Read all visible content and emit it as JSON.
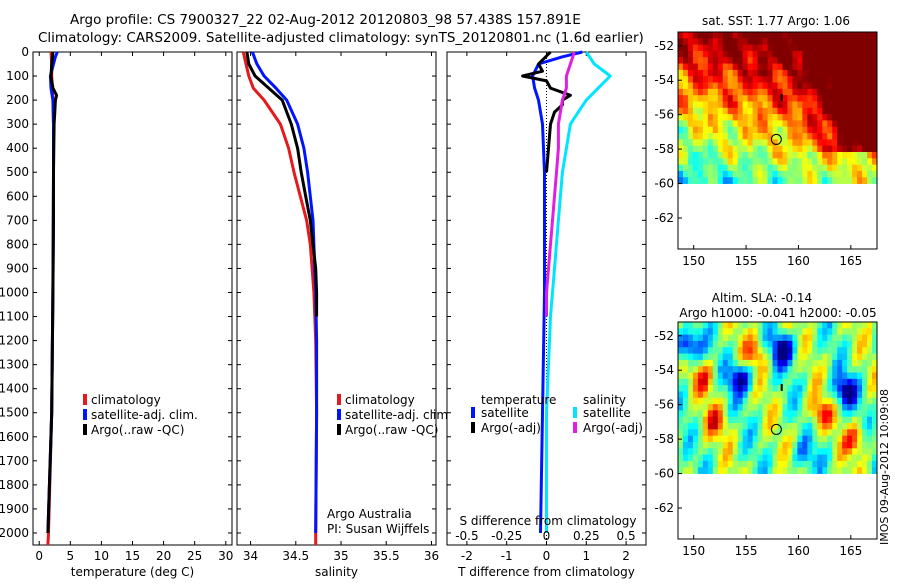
{
  "title_line1": "Argo profile: CS 7900327_22 02-Aug-2012 20120803_98 57.438S 157.891E",
  "title_line2": "Climatology: CARS2009. Satellite-adjusted climatology: synTS_20120801.nc (1.6d earlier)",
  "timestamp": "IMOS 09-Aug-2012 10:09:08",
  "colors": {
    "climatology": "#e41a1c",
    "satellite": "#0015ff",
    "argo": "#000000",
    "sat_s": "#00e5ff",
    "argo_s": "#e020e0"
  },
  "chart_data": [
    {
      "type": "line",
      "name": "temperature",
      "xlabel": "temperature (deg C)",
      "xlim": [
        -1,
        31
      ],
      "ylim": [
        0,
        2050
      ],
      "xticks": [
        0,
        5,
        10,
        15,
        20,
        25,
        30
      ],
      "xtick_labels": [
        "0",
        "5",
        "10",
        "15",
        "20",
        "25",
        "30"
      ],
      "yticks": [
        0,
        100,
        200,
        300,
        400,
        500,
        600,
        700,
        800,
        900,
        1000,
        1100,
        1200,
        1300,
        1400,
        1500,
        1600,
        1700,
        1800,
        1900,
        2000
      ],
      "ytick_labels": [
        "0",
        "100",
        "200",
        "300",
        "400",
        "500",
        "600",
        "700",
        "800",
        "900",
        "1000",
        "1100",
        "1200",
        "1300",
        "1400",
        "1500",
        "1600",
        "1700",
        "1800",
        "1900",
        "2000"
      ],
      "legend": [
        "climatology",
        "satellite-adj. clim.",
        "Argo(..raw -QC)"
      ],
      "series": [
        {
          "name": "climatology",
          "color": "#e41a1c",
          "depth": [
            0,
            50,
            100,
            150,
            200,
            300,
            500,
            1000,
            1500,
            2000,
            2050
          ],
          "values": [
            1.9,
            2.0,
            2.0,
            2.1,
            2.2,
            2.3,
            2.3,
            2.2,
            2.0,
            1.5,
            1.4
          ]
        },
        {
          "name": "satellite-adj. clim.",
          "color": "#0015ff",
          "depth": [
            0,
            20,
            50,
            100,
            150,
            200,
            300,
            500,
            1000,
            1500,
            2000
          ],
          "values": [
            2.9,
            2.6,
            2.3,
            1.8,
            1.9,
            2.2,
            2.3,
            2.3,
            2.2,
            2.0,
            1.4
          ]
        },
        {
          "name": "Argo(..raw -QC)",
          "color": "#000000",
          "depth": [
            0,
            50,
            100,
            150,
            180,
            200,
            250,
            300,
            500,
            700,
            1000,
            1500,
            2000
          ],
          "values": [
            2.2,
            2.0,
            1.9,
            2.2,
            2.8,
            2.6,
            2.5,
            2.4,
            2.3,
            2.3,
            2.2,
            2.0,
            1.4
          ]
        }
      ]
    },
    {
      "type": "line",
      "name": "salinity",
      "xlabel": "salinity",
      "xlim": [
        33.85,
        36.05
      ],
      "ylim": [
        0,
        2050
      ],
      "xticks": [
        34,
        34.5,
        35,
        35.5,
        36
      ],
      "xtick_labels": [
        "34",
        "34.5",
        "35",
        "35.5",
        "36"
      ],
      "legend": [
        "climatology",
        "satellite-adj. clim.",
        "Argo(..raw -QC)"
      ],
      "annotation": [
        "Argo Australia",
        "PI: Susan Wijffels"
      ],
      "series": [
        {
          "name": "climatology",
          "color": "#e41a1c",
          "depth": [
            0,
            50,
            100,
            150,
            200,
            300,
            400,
            500,
            600,
            700,
            800,
            1000,
            1200,
            1500,
            2000,
            2050
          ],
          "values": [
            33.92,
            33.95,
            33.98,
            34.03,
            34.15,
            34.33,
            34.42,
            34.48,
            34.55,
            34.62,
            34.66,
            34.7,
            34.72,
            34.73,
            34.72,
            34.72
          ]
        },
        {
          "name": "satellite-adj. clim.",
          "color": "#0015ff",
          "depth": [
            0,
            50,
            100,
            150,
            200,
            300,
            400,
            500,
            600,
            700,
            800,
            1000,
            1200,
            1500,
            2000
          ],
          "values": [
            34.02,
            34.07,
            34.15,
            34.28,
            34.4,
            34.52,
            34.59,
            34.63,
            34.66,
            34.69,
            34.7,
            34.72,
            34.73,
            34.73,
            34.72
          ]
        },
        {
          "name": "Argo(..raw -QC)",
          "color": "#000000",
          "depth": [
            0,
            50,
            100,
            150,
            200,
            300,
            400,
            500,
            600,
            700,
            800,
            900,
            1000,
            1100
          ],
          "values": [
            33.96,
            33.98,
            34.05,
            34.2,
            34.35,
            34.45,
            34.52,
            34.56,
            34.61,
            34.66,
            34.69,
            34.72,
            34.73,
            34.73
          ]
        }
      ]
    },
    {
      "type": "line",
      "name": "difference",
      "xlabel": "T difference from climatology",
      "xlabel_top": "S difference from climatology",
      "xlim": [
        -2.5,
        2.5
      ],
      "ylim": [
        0,
        2050
      ],
      "xticks": [
        -2,
        -1,
        0,
        1,
        2
      ],
      "xtick_labels": [
        "-2",
        "-1",
        "0",
        "1",
        "2"
      ],
      "xticks_s": [
        -0.5,
        -0.25,
        0,
        0.25,
        0.5
      ],
      "xtick_labels_s": [
        "-0.5",
        "-0.25",
        "0",
        "0.25",
        "0.5"
      ],
      "legend_headers": [
        "temperature",
        "salinity"
      ],
      "legend_t": [
        "satellite",
        "Argo(-adj)"
      ],
      "legend_s": [
        "satellite",
        "Argo(-adj)"
      ],
      "series": [
        {
          "name": "T satellite",
          "color": "#0015ff",
          "depth": [
            0,
            20,
            50,
            100,
            150,
            200,
            300,
            500,
            1000,
            1500,
            2000
          ],
          "values": [
            0.9,
            0.4,
            -0.2,
            -0.35,
            -0.3,
            -0.2,
            -0.1,
            -0.05,
            -0.05,
            -0.1,
            -0.15
          ]
        },
        {
          "name": "T Argo(-adj)",
          "color": "#000000",
          "depth": [
            0,
            50,
            80,
            100,
            120,
            150,
            180,
            200,
            220,
            250,
            300,
            400,
            500
          ],
          "values": [
            0.1,
            -0.2,
            -0.1,
            -0.6,
            0.0,
            0.1,
            0.6,
            0.4,
            0.4,
            0.2,
            0.1,
            0.05,
            0.0
          ]
        },
        {
          "name": "S satellite",
          "color": "#00e5ff",
          "depth": [
            0,
            50,
            100,
            150,
            200,
            250,
            300,
            400,
            500,
            700,
            900,
            1100,
            1500,
            2000
          ],
          "values": [
            1.0,
            1.2,
            1.6,
            1.3,
            1.0,
            0.8,
            0.6,
            0.5,
            0.4,
            0.3,
            0.2,
            0.1,
            0.0,
            0.0
          ]
        },
        {
          "name": "S Argo(-adj)",
          "color": "#e020e0",
          "depth": [
            0,
            50,
            100,
            150,
            200,
            300,
            400,
            500,
            600,
            700,
            800,
            900,
            1000,
            1100
          ],
          "values": [
            0.7,
            0.6,
            0.5,
            0.5,
            0.4,
            0.3,
            0.3,
            0.25,
            0.2,
            0.15,
            0.1,
            0.05,
            0.0,
            0.0
          ]
        }
      ]
    },
    {
      "type": "heatmap",
      "name": "map_sst",
      "title": "sat. SST: 1.77 Argo: 1.06",
      "xlim": [
        148.5,
        167.5
      ],
      "ylim": [
        -63.8,
        -51.2
      ],
      "xticks": [
        150,
        155,
        160,
        165
      ],
      "xtick_labels": [
        "150",
        "155",
        "160",
        "165"
      ],
      "yticks": [
        -52,
        -54,
        -56,
        -58,
        -60,
        -62
      ],
      "ytick_labels": [
        "-52",
        "-54",
        "-56",
        "-58",
        "-60",
        "-62"
      ],
      "data_ylim": [
        -60,
        -51.2
      ],
      "marker": {
        "lon": 157.891,
        "lat": -57.438
      }
    },
    {
      "type": "heatmap",
      "name": "map_sla",
      "title": "Altim. SLA: -0.14",
      "subtitle": "Argo h1000: -0.041 h2000: -0.05",
      "xlim": [
        148.5,
        167.5
      ],
      "ylim": [
        -63.8,
        -51.2
      ],
      "xticks": [
        150,
        155,
        160,
        165
      ],
      "xtick_labels": [
        "150",
        "155",
        "160",
        "165"
      ],
      "yticks": [
        -52,
        -54,
        -56,
        -58,
        -60,
        -62
      ],
      "ytick_labels": [
        "-52",
        "-54",
        "-56",
        "-58",
        "-60",
        "-62"
      ],
      "data_ylim": [
        -60,
        -51.2
      ],
      "marker": {
        "lon": 157.891,
        "lat": -57.438
      }
    }
  ]
}
